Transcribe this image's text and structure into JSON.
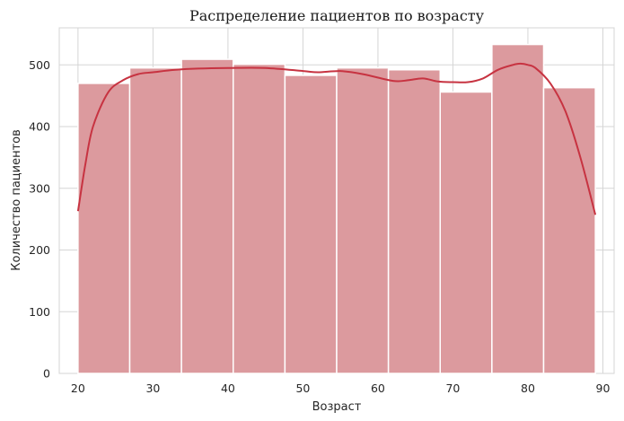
{
  "chart_data": {
    "type": "bar",
    "title": "Распределение пациентов по возрасту",
    "xlabel": "Возраст",
    "ylabel": "Количество пациентов",
    "xlim": [
      17.5,
      91.5
    ],
    "ylim": [
      0,
      560
    ],
    "xticks": [
      20,
      30,
      40,
      50,
      60,
      70,
      80,
      90
    ],
    "yticks": [
      0,
      100,
      200,
      300,
      400,
      500
    ],
    "grid": true,
    "bar_color": "#dc9a9e",
    "bar_edge_color": "#ffffff",
    "kde_color": "#c73341",
    "bins": [
      {
        "x0": 20.0,
        "x1": 26.9,
        "count": 470
      },
      {
        "x0": 26.9,
        "x1": 33.8,
        "count": 495
      },
      {
        "x0": 33.8,
        "x1": 40.7,
        "count": 509
      },
      {
        "x0": 40.7,
        "x1": 47.6,
        "count": 501
      },
      {
        "x0": 47.6,
        "x1": 54.5,
        "count": 483
      },
      {
        "x0": 54.5,
        "x1": 61.4,
        "count": 495
      },
      {
        "x0": 61.4,
        "x1": 68.3,
        "count": 492
      },
      {
        "x0": 68.3,
        "x1": 75.2,
        "count": 456
      },
      {
        "x0": 75.2,
        "x1": 82.1,
        "count": 533
      },
      {
        "x0": 82.1,
        "x1": 89.0,
        "count": 463
      }
    ],
    "kde": {
      "x": [
        20,
        21,
        22,
        24,
        26,
        28,
        30,
        33,
        36,
        40,
        45,
        50,
        52,
        55,
        58,
        62,
        64,
        66,
        68,
        70,
        72,
        74,
        76,
        78,
        79,
        80,
        81,
        83,
        85,
        87,
        89
      ],
      "y": [
        263,
        340,
        400,
        455,
        475,
        485,
        488,
        492,
        494,
        495,
        495,
        490,
        488,
        490,
        485,
        474,
        475,
        478,
        473,
        472,
        472,
        478,
        492,
        500,
        502,
        500,
        495,
        470,
        425,
        350,
        257
      ]
    }
  }
}
